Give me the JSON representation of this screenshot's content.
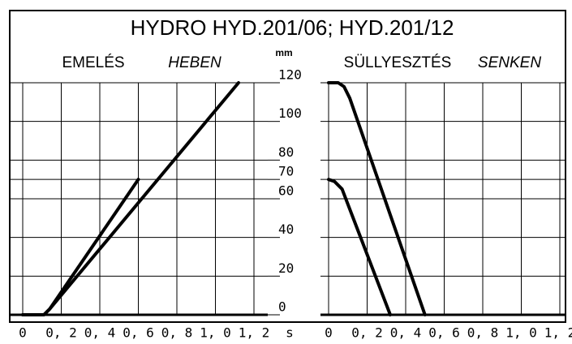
{
  "title": "HYDRO HYD.201/06;  HYD.201/12",
  "chart_data": [
    {
      "type": "line",
      "title": "EMELÉS",
      "subtitle": "HEBEN",
      "ylabel": "mm",
      "xlabel": "s",
      "xlim": [
        0,
        1.2
      ],
      "ylim": [
        0,
        120
      ],
      "xticks": [
        0,
        {
          "value": 0.2,
          "label": "0, 2"
        },
        {
          "value": 0.4,
          "label": "0, 4"
        },
        {
          "value": 0.6,
          "label": "0, 6"
        },
        {
          "value": 0.8,
          "label": "0, 8"
        },
        {
          "value": 1.0,
          "label": "1, 0"
        },
        {
          "value": 1.2,
          "label": "1, 2"
        }
      ],
      "yticks": [
        0,
        20,
        40,
        60,
        70,
        80,
        100,
        120
      ],
      "grid": true,
      "series": [
        {
          "color": "#000000",
          "x": [
            0,
            0.11,
            0.14,
            1.12
          ],
          "values": [
            0,
            0,
            3,
            120
          ]
        },
        {
          "color": "#000000",
          "x": [
            0,
            0.11,
            0.14,
            0.6
          ],
          "values": [
            0,
            0,
            3,
            70
          ]
        }
      ]
    },
    {
      "type": "line",
      "title": "SÜLLYESZTÉS",
      "subtitle": "SENKEN",
      "xlim": [
        0,
        1.2
      ],
      "ylim": [
        0,
        120
      ],
      "xticks": [
        0,
        {
          "value": 0.2,
          "label": "0, 2"
        },
        {
          "value": 0.4,
          "label": "0, 4"
        },
        {
          "value": 0.6,
          "label": "0, 6"
        },
        {
          "value": 0.8,
          "label": "0, 8"
        },
        {
          "value": 1.0,
          "label": "1, 0"
        },
        {
          "value": 1.2,
          "label": "1, 2"
        }
      ],
      "yticks": [
        0,
        20,
        40,
        60,
        70,
        80,
        100,
        120
      ],
      "grid": true,
      "series": [
        {
          "color": "#000000",
          "x": [
            0,
            0.05,
            0.08,
            0.11,
            0.5
          ],
          "values": [
            120,
            120,
            118,
            112,
            0
          ]
        },
        {
          "color": "#000000",
          "x": [
            0,
            0.03,
            0.07,
            0.32
          ],
          "values": [
            70,
            69,
            65,
            0
          ]
        }
      ]
    }
  ]
}
